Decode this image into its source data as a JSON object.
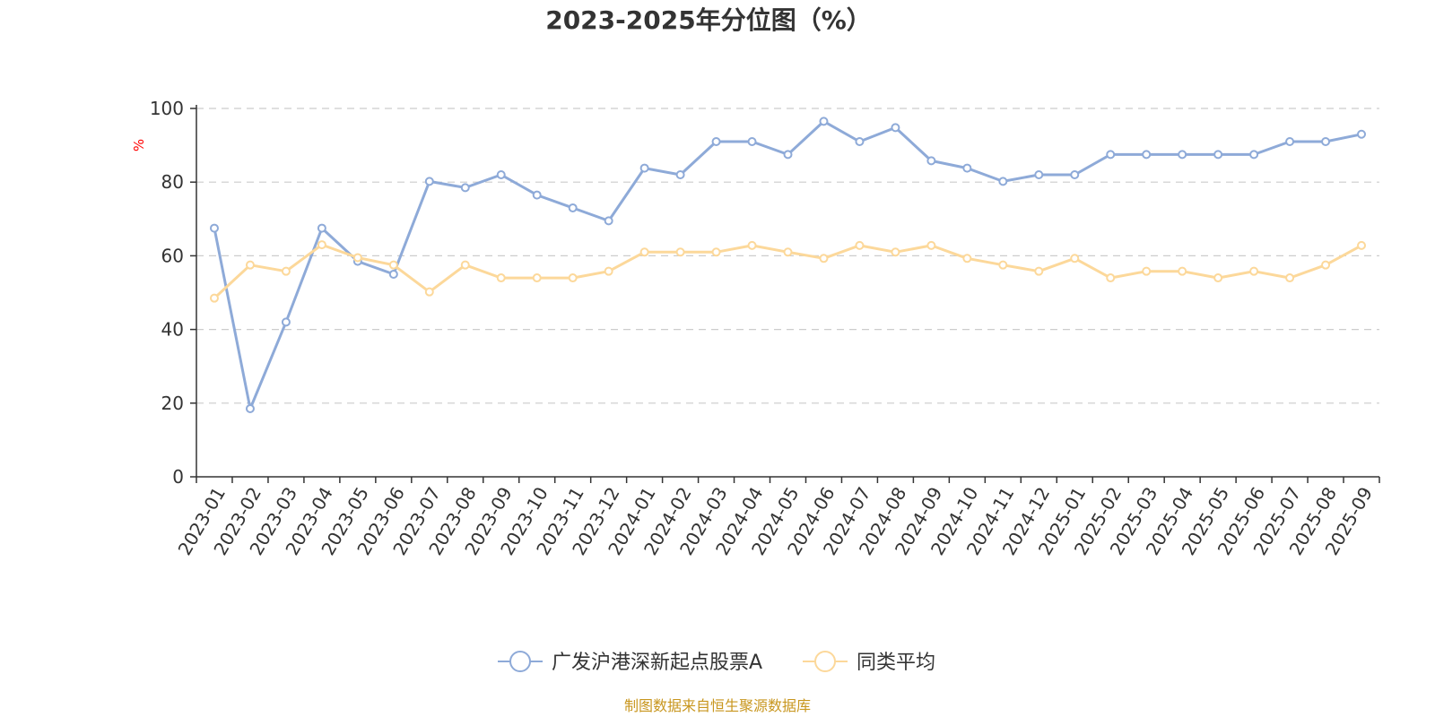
{
  "chart_data": {
    "type": "line",
    "title": "2023-2025年分位图（%）",
    "ylabel": "%",
    "xlabel": "",
    "ylim": [
      0,
      100
    ],
    "yticks": [
      0,
      20,
      40,
      60,
      80,
      100
    ],
    "grid": true,
    "legend_position": "bottom-center",
    "categories": [
      "2023-01",
      "2023-02",
      "2023-03",
      "2023-04",
      "2023-05",
      "2023-06",
      "2023-07",
      "2023-08",
      "2023-09",
      "2023-10",
      "2023-11",
      "2023-12",
      "2024-01",
      "2024-02",
      "2024-03",
      "2024-04",
      "2024-05",
      "2024-06",
      "2024-07",
      "2024-08",
      "2024-09",
      "2024-10",
      "2024-11",
      "2024-12",
      "2025-01",
      "2025-02",
      "2025-03",
      "2025-04",
      "2025-05",
      "2025-06",
      "2025-07",
      "2025-08",
      "2025-09"
    ],
    "series": [
      {
        "name": "广发沪港深新起点股票A",
        "color": "#8eaad8",
        "values": [
          67.5,
          18.5,
          42,
          67.5,
          58.5,
          55,
          80.2,
          78.5,
          82,
          76.5,
          73,
          69.5,
          83.8,
          82,
          91,
          91,
          87.5,
          96.5,
          91,
          94.8,
          85.8,
          83.8,
          80.2,
          82,
          82,
          87.5,
          87.5,
          87.5,
          87.5,
          87.5,
          91,
          91,
          93
        ]
      },
      {
        "name": "同类平均",
        "color": "#fcd89a",
        "values": [
          48.5,
          57.5,
          55.8,
          63,
          59.5,
          57.5,
          50.2,
          57.5,
          54,
          54,
          54,
          55.8,
          61,
          61,
          61,
          62.8,
          61,
          59.3,
          62.8,
          61,
          62.8,
          59.3,
          57.5,
          55.8,
          59.3,
          54,
          55.8,
          55.8,
          54,
          55.8,
          54,
          57.5,
          62.8
        ]
      }
    ]
  },
  "source": "制图数据来自恒生聚源数据库"
}
